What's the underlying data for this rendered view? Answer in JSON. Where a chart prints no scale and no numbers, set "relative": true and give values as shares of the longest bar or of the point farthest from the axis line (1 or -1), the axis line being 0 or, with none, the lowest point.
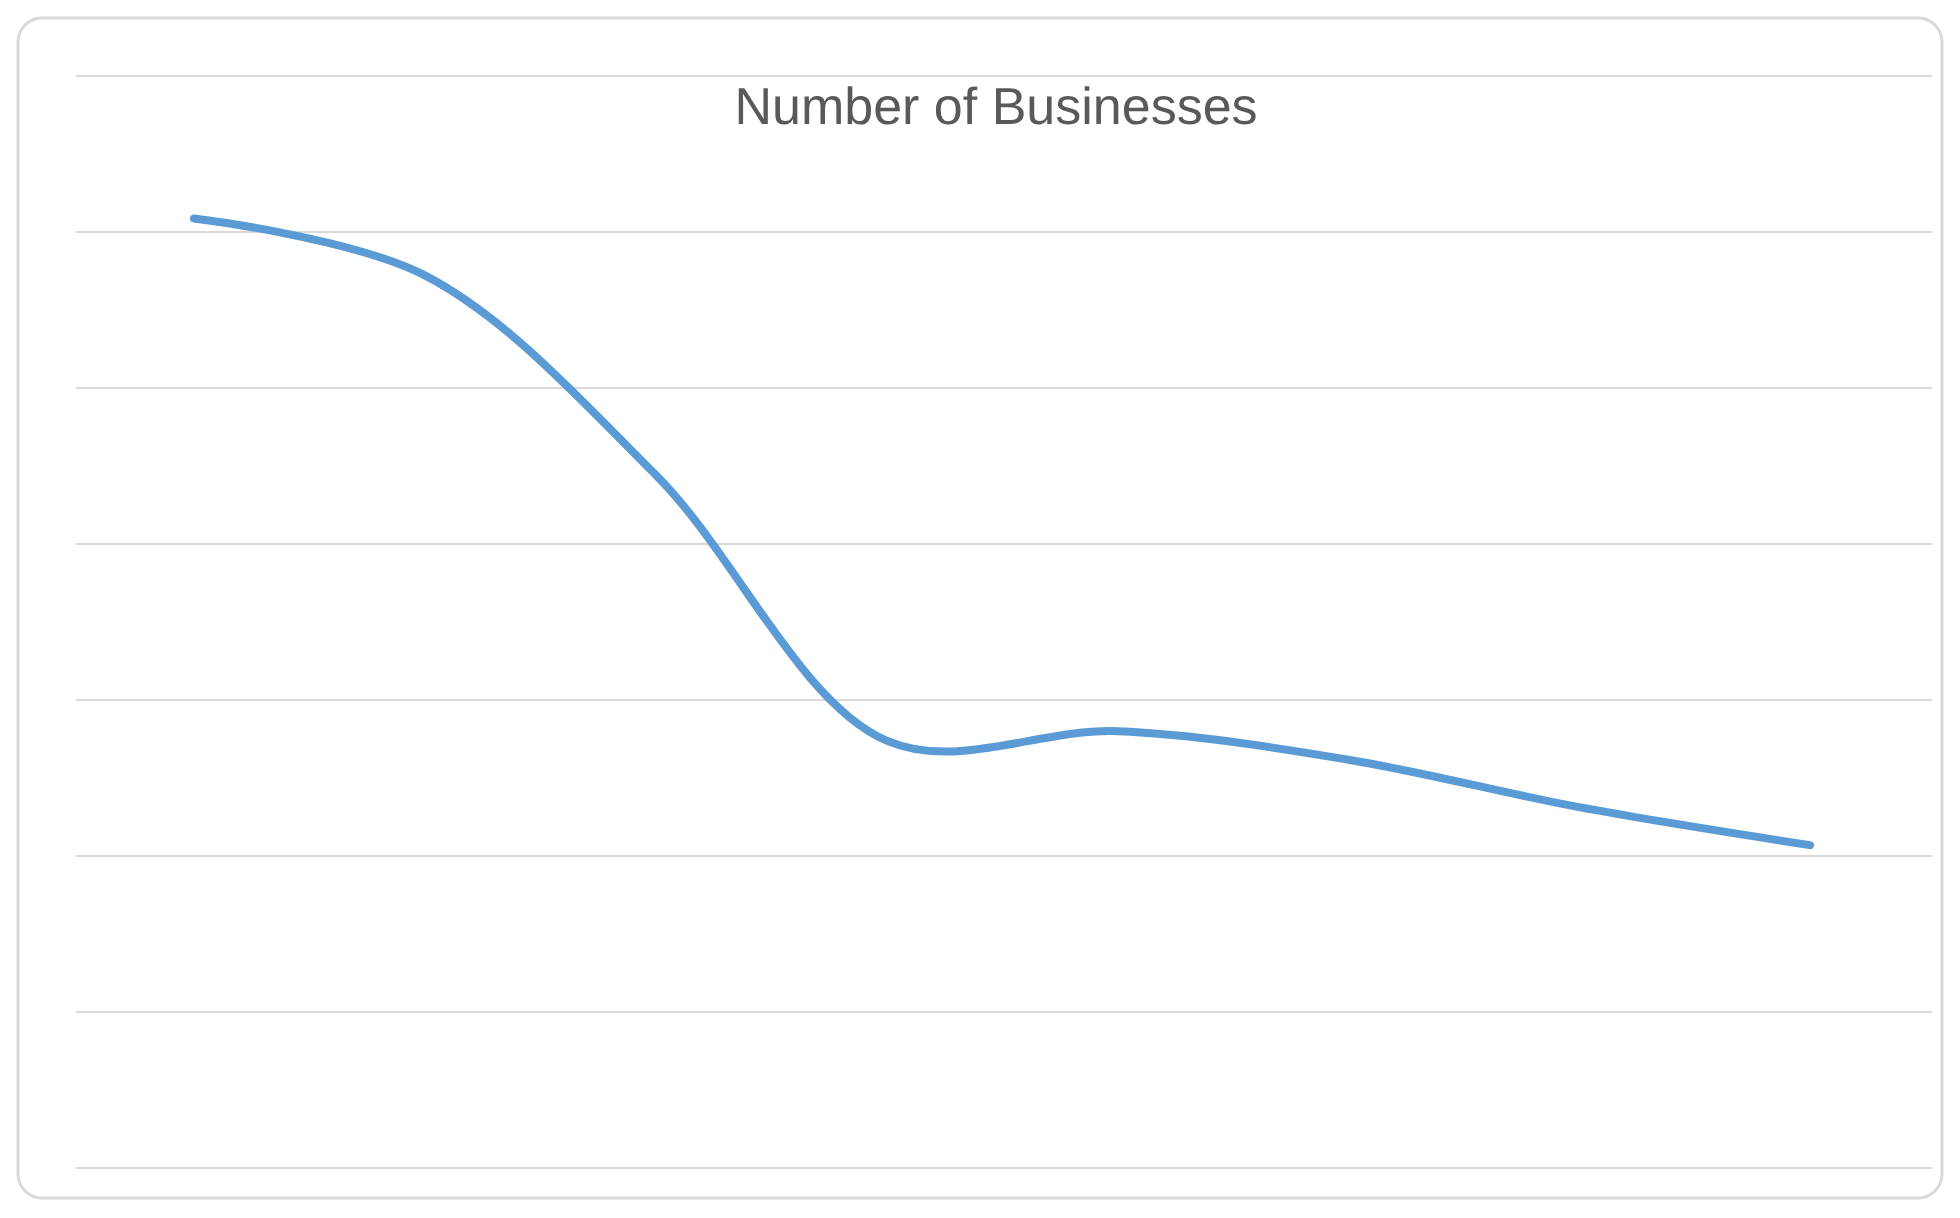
{
  "chart_data": {
    "type": "line",
    "title": "Number of Businesses",
    "relative": true,
    "grid": "y",
    "line_style": "solid",
    "categories": [
      null,
      null,
      null,
      null,
      null,
      null,
      null,
      null
    ],
    "series": [
      {
        "color": "#5b9bd5",
        "values": [
          1,
          0.94,
          0.73,
          0.45,
          0.46,
          0.43,
          0.38,
          0.34
        ]
      }
    ]
  }
}
